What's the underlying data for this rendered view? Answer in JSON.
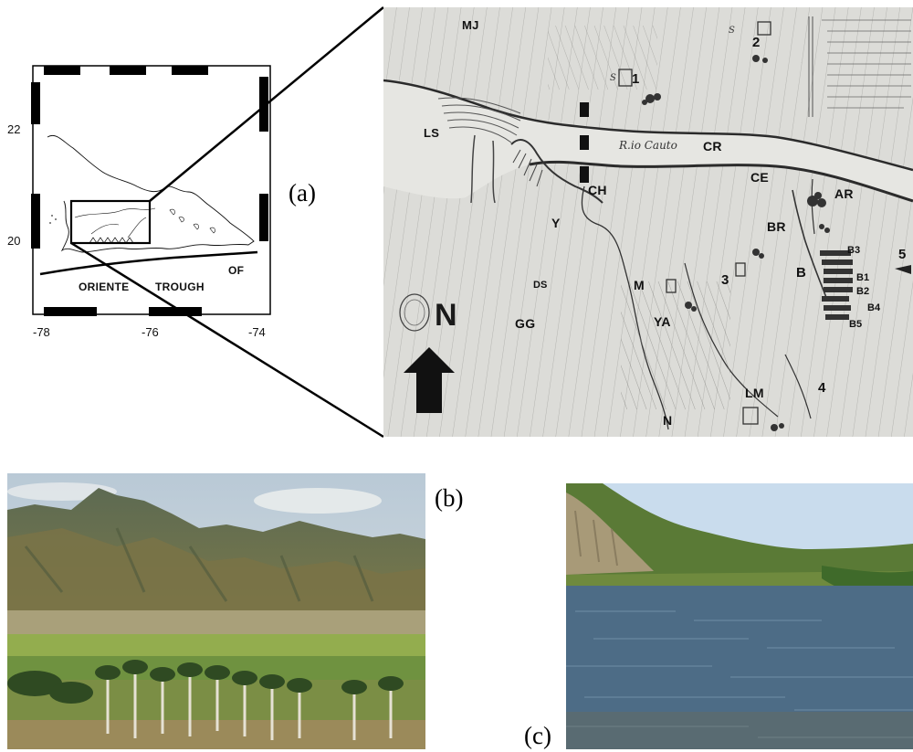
{
  "panels": {
    "a": "(a)",
    "b": "(b)",
    "c": "(c)"
  },
  "inset_map": {
    "lat_ticks": [
      "22",
      "20"
    ],
    "lon_ticks": [
      "-78",
      "-76",
      "-74"
    ],
    "trough_label": "ORIENTE",
    "trough_label2": "TROUGH",
    "fault_label": "OF"
  },
  "historical_map": {
    "labels": {
      "MJ": "MJ",
      "LS": "LS",
      "CR": "CR",
      "CH": "CH",
      "CE": "CE",
      "AR": "AR",
      "BR": "BR",
      "B": "B",
      "B1": "B1",
      "B2": "B2",
      "B3": "B3",
      "B4": "B4",
      "B5": "B5",
      "Y": "Y",
      "DS": "DS",
      "GG": "GG",
      "M": "M",
      "YA": "YA",
      "LM": "LM",
      "N": "N",
      "north": "N"
    },
    "numbers": [
      "1",
      "2",
      "3",
      "4",
      "5"
    ],
    "river_script": "R.io Cauto",
    "site_code": "S"
  },
  "colors": {
    "paper": "#d9d9d6",
    "ink": "#2b2b2b",
    "sky": "#c9dbea",
    "mountain": "#6f7b54",
    "field": "#8aa54a",
    "water": "#4a6a85",
    "cliff": "#a89a78"
  }
}
